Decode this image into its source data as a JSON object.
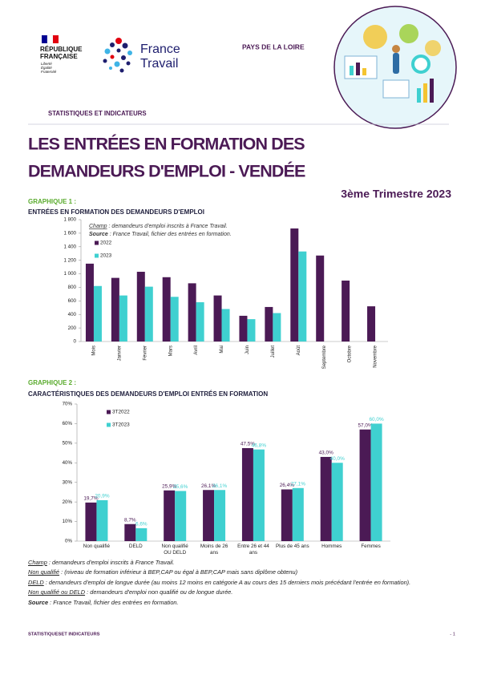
{
  "header": {
    "republic": [
      "RÉPUBLIQUE",
      "FRANÇAISE"
    ],
    "motto": [
      "Liberté",
      "Égalité",
      "Fraternité"
    ],
    "brand": [
      "France",
      "Travail"
    ],
    "region": "PAYS DE LA LOIRE",
    "section": "STATISTIQUES ET INDICATEURS"
  },
  "title": [
    "LES ENTRÉES EN FORMATION DES",
    "DEMANDEURS D'EMPLOI - VENDÉE"
  ],
  "period": "3ème Trimestre 2023",
  "chart_data": [
    {
      "type": "bar",
      "label": "GRAPHIQUE 1 :",
      "title": "ENTRÉES EN FORMATION DES DEMANDEURS D'EMPLOI",
      "notes": [
        {
          "term": "Champ",
          "text": ": demandeurs d'emploi inscrits à France Travail."
        },
        {
          "term": "Source",
          "text": ": France Travail, fichier des entrées en formation."
        }
      ],
      "categories": [
        "Mois",
        "Janvier",
        "Février",
        "Mars",
        "Avril",
        "Mai",
        "Juin",
        "Juillet",
        "Août",
        "Septembre",
        "Octobre",
        "Novembre"
      ],
      "series": [
        {
          "name": "2022",
          "color": "#4b1a55",
          "values": [
            1150,
            940,
            1030,
            950,
            860,
            680,
            380,
            510,
            1670,
            1270,
            900,
            520
          ]
        },
        {
          "name": "2023",
          "color": "#3fd0d0",
          "values": [
            820,
            680,
            810,
            660,
            580,
            480,
            330,
            420,
            1330,
            null,
            null,
            null
          ]
        }
      ],
      "ylim": [
        0,
        1800
      ],
      "yticks": [
        0,
        200,
        400,
        600,
        800,
        {
          "value": 1000,
          "label": "1 000"
        },
        {
          "value": 1200,
          "label": "1 200"
        },
        {
          "value": 1400,
          "label": "1 400"
        },
        {
          "value": 1600,
          "label": "1 600"
        },
        {
          "value": 1800,
          "label": "1 800"
        }
      ]
    },
    {
      "type": "bar",
      "label": "GRAPHIQUE 2 :",
      "title": "CARACTÉRISTIQUES DES DEMANDEURS D'EMPLOI ENTRÉS EN FORMATION",
      "categories": [
        "Non qualifié",
        "DELD",
        "Non qualifié OU DELD",
        "Moins de 26 ans",
        "Entre 26 et 44 ans",
        "Plus de 45 ans",
        "Hommes",
        "Femmes"
      ],
      "series": [
        {
          "name": "3T2022",
          "color": "#4b1a55",
          "values": [
            19.7,
            8.7,
            25.9,
            26.1,
            47.5,
            26.4,
            43.0,
            57.0
          ],
          "value_labels": [
            "19,7%",
            "8,7%",
            "25,9%",
            "26,1%",
            "47,5%",
            "26,4%",
            "43,0%",
            "57,0%"
          ]
        },
        {
          "name": "3T2023",
          "color": "#3fd0d0",
          "values": [
            20.9,
            6.6,
            25.6,
            26.1,
            46.8,
            27.1,
            40.0,
            60.0
          ],
          "value_labels": [
            "20,9%",
            "6,6%",
            "25,6%",
            "26,1%",
            "46,8%",
            "27,1%",
            "40,0%",
            "60,0%"
          ]
        }
      ],
      "ylim": [
        0,
        70
      ],
      "yticks": [
        {
          "value": 0,
          "label": "0%"
        },
        {
          "value": 10,
          "label": "10%"
        },
        {
          "value": 20,
          "label": "20%"
        },
        {
          "value": 30,
          "label": "30%"
        },
        {
          "value": 40,
          "label": "40%"
        },
        {
          "value": 50,
          "label": "50%"
        },
        {
          "value": 60,
          "label": "60%"
        },
        {
          "value": 70,
          "label": "70%"
        }
      ]
    }
  ],
  "notes": [
    {
      "term": "Champ",
      "text": ": demandeurs d'emploi inscrits à France Travail."
    },
    {
      "term": "Non qualifié",
      "text": ": (niveau de formation inférieur à BEP,CAP ou égal à BEP,CAP mais sans diplôme obtenu)"
    },
    {
      "term": "DELD",
      "text": ": demandeurs d'emploi de longue durée (au moins 12 moins en catégorie A au cours des 15 derniers mois précédant l'entrée en formation)."
    },
    {
      "term": "Non qualifié ou DELD",
      "text": ": demandeurs d'emploi non qualifié ou de longue durée."
    },
    {
      "term": "Source",
      "text": ": France Travail, fichier des entrées en formation."
    }
  ],
  "footer": {
    "left": "STATISTIQUESET INDICATEURS",
    "right": "- 1"
  }
}
